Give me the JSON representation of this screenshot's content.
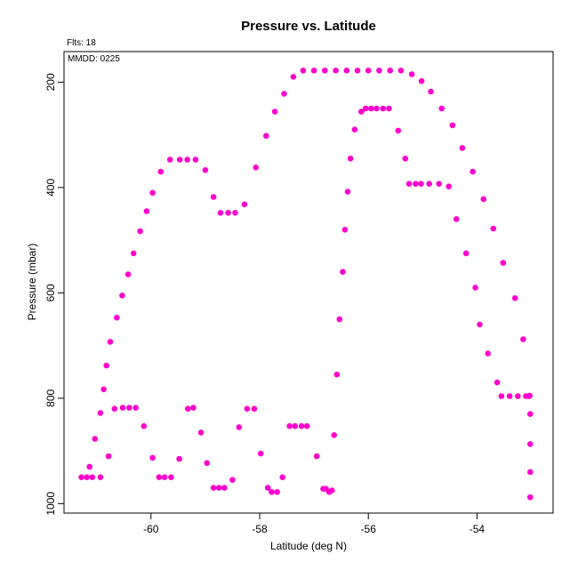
{
  "chart_data": {
    "type": "scatter",
    "title": "Pressure vs. Latitude",
    "xlabel": "Latitude (deg N)",
    "ylabel": "Pressure (mbar)",
    "annotations": {
      "fits": "Flts: 18",
      "date": "MMDD: 0225"
    },
    "xlim": [
      -61.6,
      -52.6
    ],
    "ylim": [
      1018,
      142
    ],
    "y_reversed": true,
    "grid": false,
    "legend": "none",
    "marker_color": "#ff00cc",
    "x_ticks": [
      -60,
      -58,
      -56,
      -54
    ],
    "x_tick_labels": [
      "-60",
      "-58",
      "-56",
      "-54"
    ],
    "y_ticks": [
      200,
      400,
      600,
      800,
      1000
    ],
    "y_tick_labels": [
      "200",
      "400",
      "600",
      "800",
      "1000"
    ],
    "points": [
      [
        -61.28,
        950
      ],
      [
        -61.18,
        950
      ],
      [
        -61.08,
        950
      ],
      [
        -61.13,
        930
      ],
      [
        -61.03,
        877
      ],
      [
        -60.93,
        950
      ],
      [
        -60.93,
        828
      ],
      [
        -60.87,
        783
      ],
      [
        -60.82,
        738
      ],
      [
        -60.75,
        693
      ],
      [
        -60.63,
        647
      ],
      [
        -60.53,
        605
      ],
      [
        -60.42,
        565
      ],
      [
        -60.32,
        525
      ],
      [
        -60.2,
        483
      ],
      [
        -60.08,
        445
      ],
      [
        -59.97,
        410
      ],
      [
        -59.82,
        370
      ],
      [
        -59.65,
        347
      ],
      [
        -59.47,
        347
      ],
      [
        -59.33,
        347
      ],
      [
        -59.18,
        347
      ],
      [
        -59.0,
        367
      ],
      [
        -58.85,
        418
      ],
      [
        -58.72,
        448
      ],
      [
        -58.58,
        448
      ],
      [
        -58.45,
        448
      ],
      [
        -58.28,
        432
      ],
      [
        -58.07,
        362
      ],
      [
        -57.88,
        302
      ],
      [
        -57.72,
        256
      ],
      [
        -57.55,
        222
      ],
      [
        -57.38,
        190
      ],
      [
        -57.2,
        178
      ],
      [
        -57.0,
        178
      ],
      [
        -56.8,
        178
      ],
      [
        -56.6,
        178
      ],
      [
        -56.4,
        178
      ],
      [
        -56.2,
        178
      ],
      [
        -56.0,
        178
      ],
      [
        -55.8,
        178
      ],
      [
        -55.6,
        178
      ],
      [
        -55.4,
        178
      ],
      [
        -55.2,
        185
      ],
      [
        -55.02,
        198
      ],
      [
        -54.85,
        218
      ],
      [
        -54.65,
        250
      ],
      [
        -54.45,
        282
      ],
      [
        -54.27,
        325
      ],
      [
        -54.08,
        370
      ],
      [
        -53.88,
        422
      ],
      [
        -53.7,
        478
      ],
      [
        -53.52,
        543
      ],
      [
        -53.3,
        610
      ],
      [
        -53.15,
        688
      ],
      [
        -53.03,
        795
      ],
      [
        -53.02,
        830
      ],
      [
        -53.02,
        887
      ],
      [
        -53.02,
        940
      ],
      [
        -53.02,
        988
      ],
      [
        -53.05,
        796
      ],
      [
        -53.1,
        796
      ],
      [
        -53.25,
        796
      ],
      [
        -53.4,
        796
      ],
      [
        -53.55,
        796
      ],
      [
        -53.63,
        770
      ],
      [
        -53.8,
        715
      ],
      [
        -53.95,
        660
      ],
      [
        -54.03,
        590
      ],
      [
        -54.2,
        525
      ],
      [
        -54.38,
        460
      ],
      [
        -54.52,
        398
      ],
      [
        -54.7,
        393
      ],
      [
        -54.88,
        393
      ],
      [
        -55.03,
        393
      ],
      [
        -55.13,
        393
      ],
      [
        -55.25,
        393
      ],
      [
        -55.32,
        345
      ],
      [
        -55.45,
        292
      ],
      [
        -55.62,
        250
      ],
      [
        -55.73,
        250
      ],
      [
        -55.85,
        250
      ],
      [
        -55.95,
        250
      ],
      [
        -56.05,
        250
      ],
      [
        -56.13,
        256
      ],
      [
        -56.25,
        290
      ],
      [
        -56.33,
        345
      ],
      [
        -56.38,
        408
      ],
      [
        -56.43,
        480
      ],
      [
        -56.47,
        560
      ],
      [
        -56.53,
        650
      ],
      [
        -56.58,
        755
      ],
      [
        -56.63,
        870
      ],
      [
        -56.67,
        975
      ],
      [
        -56.72,
        978
      ],
      [
        -56.78,
        972
      ],
      [
        -56.83,
        972
      ],
      [
        -56.95,
        910
      ],
      [
        -57.13,
        853
      ],
      [
        -57.23,
        853
      ],
      [
        -57.35,
        853
      ],
      [
        -57.45,
        853
      ],
      [
        -57.58,
        950
      ],
      [
        -57.68,
        978
      ],
      [
        -57.78,
        978
      ],
      [
        -57.85,
        970
      ],
      [
        -57.98,
        905
      ],
      [
        -58.1,
        820
      ],
      [
        -58.23,
        820
      ],
      [
        -58.38,
        855
      ],
      [
        -58.5,
        955
      ],
      [
        -58.65,
        970
      ],
      [
        -58.75,
        970
      ],
      [
        -58.85,
        970
      ],
      [
        -58.97,
        923
      ],
      [
        -59.08,
        865
      ],
      [
        -59.22,
        818
      ],
      [
        -59.32,
        820
      ],
      [
        -59.48,
        915
      ],
      [
        -59.63,
        950
      ],
      [
        -59.75,
        950
      ],
      [
        -59.85,
        950
      ],
      [
        -59.97,
        913
      ],
      [
        -60.13,
        853
      ],
      [
        -60.28,
        818
      ],
      [
        -60.4,
        818
      ],
      [
        -60.52,
        818
      ],
      [
        -60.67,
        820
      ],
      [
        -60.78,
        910
      ]
    ]
  }
}
